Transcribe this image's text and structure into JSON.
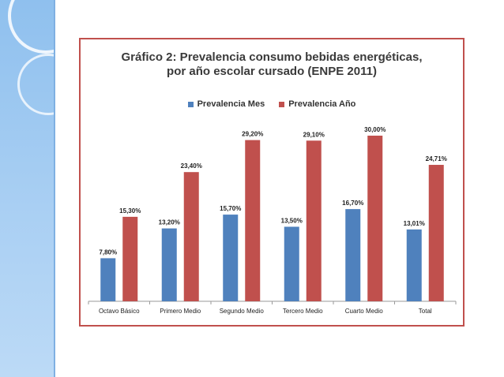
{
  "chart_data": {
    "type": "bar",
    "title_line1": "Gráfico 2: Prevalencia consumo bebidas energéticas,",
    "title_line2": "por año escolar cursado (ENPE 2011)",
    "categories": [
      "Octavo Básico",
      "Primero Medio",
      "Segundo Medio",
      "Tercero Medio",
      "Cuarto Medio",
      "Total"
    ],
    "series": [
      {
        "name": "Prevalencia Mes",
        "color": "#4f81bd",
        "values": [
          7.8,
          13.2,
          15.7,
          13.5,
          16.7,
          13.01
        ],
        "labels": [
          "7,80%",
          "13,20%",
          "15,70%",
          "13,50%",
          "16,70%",
          "13,01%"
        ]
      },
      {
        "name": "Prevalencia Año",
        "color": "#c0504d",
        "values": [
          15.3,
          23.4,
          29.2,
          29.1,
          30.0,
          24.71
        ],
        "labels": [
          "15,30%",
          "23,40%",
          "29,20%",
          "29,10%",
          "30,00%",
          "24,71%"
        ]
      }
    ],
    "ylim": [
      0,
      32
    ],
    "grid": false,
    "legend_position": "top"
  }
}
